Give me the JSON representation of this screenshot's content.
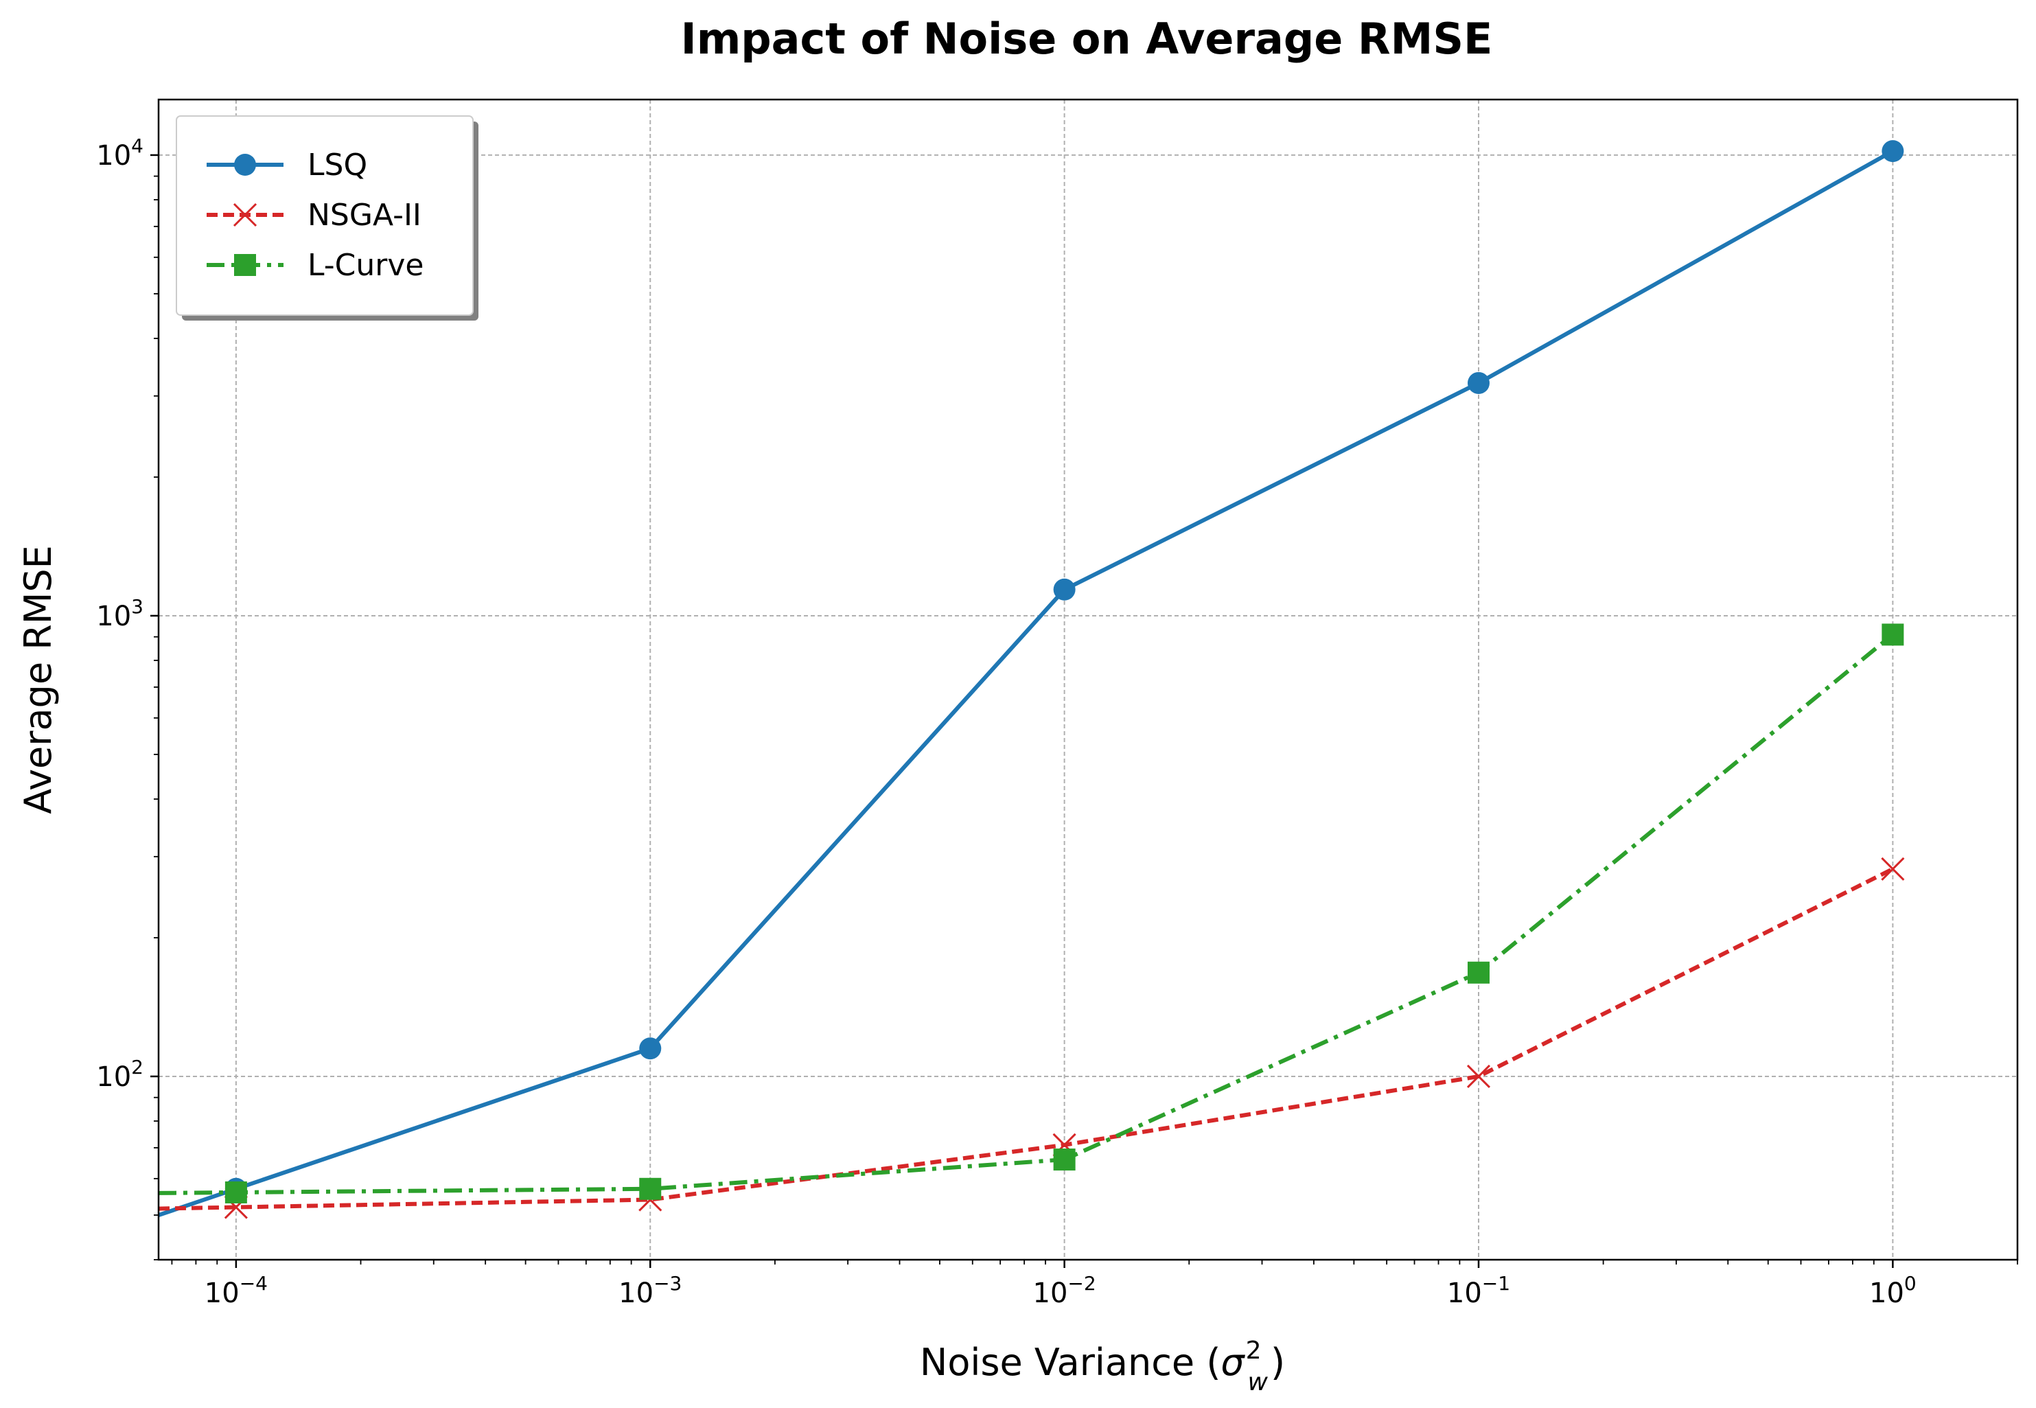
{
  "chart_data": {
    "type": "line",
    "title": "Impact of Noise on Average RMSE",
    "xlabel_main": "Noise Variance (",
    "xlabel_symbol": "σ",
    "xlabel_sup": "2",
    "xlabel_sub": "w",
    "xlabel_close": ")",
    "ylabel": "Average RMSE",
    "x_scale": "log",
    "y_scale": "log",
    "xlim": [
      6.5e-05,
      2.0
    ],
    "ylim": [
      40,
      13200
    ],
    "grid": true,
    "legend_position": "top-left",
    "x_ticks": [
      {
        "value": 0.0001,
        "base": "10",
        "exp": "−4"
      },
      {
        "value": 0.001,
        "base": "10",
        "exp": "−3"
      },
      {
        "value": 0.01,
        "base": "10",
        "exp": "−2"
      },
      {
        "value": 0.1,
        "base": "10",
        "exp": "−1"
      },
      {
        "value": 1,
        "base": "10",
        "exp": "0"
      }
    ],
    "y_ticks": [
      {
        "value": 100,
        "base": "10",
        "exp": "2"
      },
      {
        "value": 1000,
        "base": "10",
        "exp": "3"
      },
      {
        "value": 10000,
        "base": "10",
        "exp": "4"
      }
    ],
    "x": [
      0.0001,
      0.001,
      0.01,
      0.1,
      1
    ],
    "series": [
      {
        "name": "LSQ",
        "color": "#1f77b4",
        "marker": "circle",
        "line_style": "solid",
        "values": [
          57,
          115,
          1140,
          3200,
          10200
        ]
      },
      {
        "name": "NSGA-II",
        "color": "#d62728",
        "marker": "x",
        "line_style": "dashed",
        "values": [
          52,
          54,
          71,
          100,
          282
        ]
      },
      {
        "name": "L-Curve",
        "color": "#2ca02c",
        "marker": "square",
        "line_style": "dashdot",
        "values": [
          56,
          57,
          66,
          168,
          910
        ]
      }
    ]
  }
}
